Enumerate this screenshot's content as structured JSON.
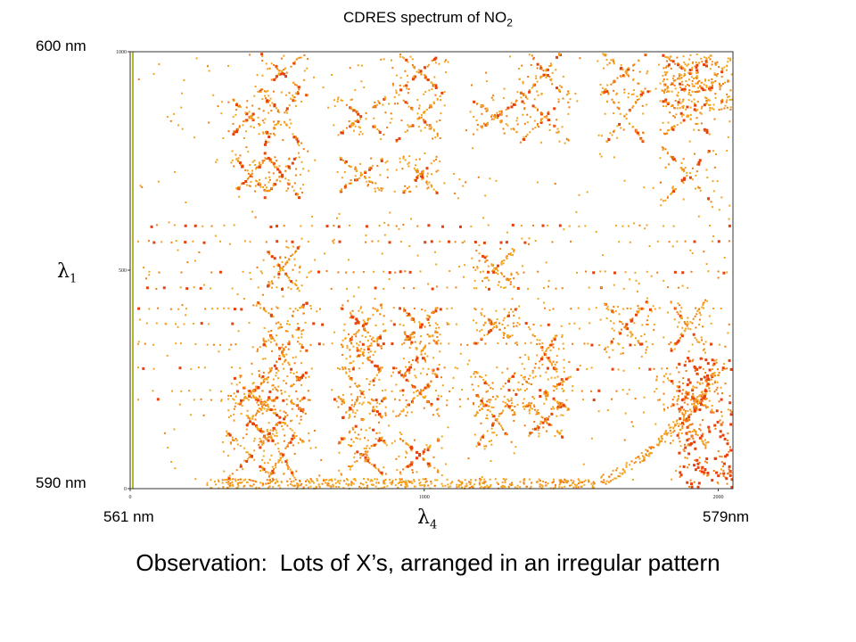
{
  "chart_data": {
    "type": "scatter",
    "title_main": "CDRES spectrum of NO",
    "title_sub": "2",
    "x_axis": {
      "symbol": "λ",
      "subscript": "4",
      "left_label": "561 nm",
      "right_label": "579nm",
      "range": [
        0,
        2050
      ],
      "ticks": [
        0,
        1000,
        2000
      ],
      "tick_labels": [
        "0",
        "1000",
        "2000"
      ]
    },
    "y_axis": {
      "symbol": "λ",
      "subscript": "1",
      "top_label": "600 nm",
      "bottom_label": "590 nm",
      "range": [
        0,
        1000
      ],
      "ticks": [
        0,
        500,
        1000
      ],
      "tick_labels": [
        "0",
        "500",
        "1000"
      ]
    },
    "colors": {
      "weak": "#f4a41c",
      "medium": "#f07d12",
      "strong": "#e8420c",
      "axis_frame": "#333333",
      "left_edge_band": "#b5b82a"
    }
  },
  "observation": {
    "lead": "Observation:",
    "text": "Lots of X’s, arranged in an irregular pattern"
  }
}
